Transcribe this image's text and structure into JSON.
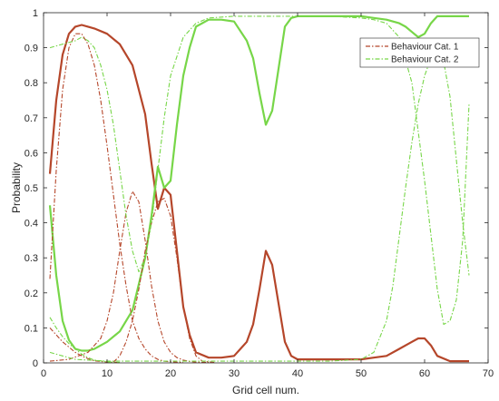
{
  "chart_data": {
    "type": "line",
    "xlabel": "Grid cell num.",
    "ylabel": "Probability",
    "xlim": [
      0,
      70
    ],
    "ylim": [
      0,
      1
    ],
    "xticks": [
      0,
      10,
      20,
      30,
      40,
      50,
      60,
      70
    ],
    "yticks": [
      0,
      0.1,
      0.2,
      0.3,
      0.4,
      0.5,
      0.6,
      0.7,
      0.8,
      0.9,
      1
    ],
    "grid": false,
    "legend_position": "top-right",
    "legend": [
      {
        "label": "Behaviour Cat. 1",
        "color": "#b5462a",
        "style": "dash-dot"
      },
      {
        "label": "Behaviour Cat. 2",
        "color": "#77d648",
        "style": "dash-dot"
      }
    ],
    "series": [
      {
        "color": "#b5462a",
        "style": "solid",
        "width": 2.2,
        "x": [
          1,
          2,
          3,
          4,
          5,
          6,
          7,
          8,
          10,
          12,
          14,
          16,
          17,
          18,
          19,
          20,
          21,
          22,
          23,
          24,
          26,
          28,
          30,
          32,
          33,
          34,
          35,
          36,
          37,
          38,
          39,
          40,
          45,
          50,
          52,
          54,
          56,
          58,
          59,
          60,
          61,
          62,
          64,
          67
        ],
        "y": [
          0.54,
          0.75,
          0.88,
          0.94,
          0.96,
          0.965,
          0.96,
          0.955,
          0.94,
          0.91,
          0.85,
          0.71,
          0.57,
          0.44,
          0.5,
          0.48,
          0.32,
          0.16,
          0.08,
          0.03,
          0.015,
          0.015,
          0.02,
          0.06,
          0.11,
          0.21,
          0.32,
          0.28,
          0.17,
          0.06,
          0.02,
          0.01,
          0.01,
          0.01,
          0.015,
          0.02,
          0.04,
          0.06,
          0.07,
          0.07,
          0.05,
          0.02,
          0.005,
          0.005
        ]
      },
      {
        "color": "#77d648",
        "style": "solid",
        "width": 2.2,
        "x": [
          1,
          2,
          3,
          4,
          5,
          6,
          7,
          8,
          10,
          12,
          14,
          16,
          17,
          18,
          19,
          20,
          21,
          22,
          23,
          24,
          26,
          28,
          30,
          32,
          33,
          34,
          35,
          36,
          37,
          38,
          39,
          40,
          45,
          50,
          52,
          54,
          56,
          57,
          58,
          59,
          60,
          61,
          62,
          64,
          67
        ],
        "y": [
          0.45,
          0.25,
          0.12,
          0.065,
          0.04,
          0.035,
          0.035,
          0.04,
          0.06,
          0.09,
          0.15,
          0.3,
          0.42,
          0.56,
          0.5,
          0.52,
          0.68,
          0.82,
          0.9,
          0.96,
          0.98,
          0.98,
          0.975,
          0.92,
          0.87,
          0.77,
          0.68,
          0.72,
          0.84,
          0.96,
          0.985,
          0.99,
          0.99,
          0.99,
          0.985,
          0.98,
          0.97,
          0.96,
          0.945,
          0.93,
          0.94,
          0.97,
          0.99,
          0.99,
          0.99
        ]
      },
      {
        "color": "#b5462a",
        "style": "dash-dot",
        "width": 1.1,
        "x": [
          1,
          2,
          3,
          4,
          5,
          6,
          7,
          8,
          9,
          10,
          11,
          12,
          13,
          14,
          15,
          16,
          17,
          18,
          19,
          20,
          21,
          22
        ],
        "y": [
          0.24,
          0.55,
          0.78,
          0.9,
          0.94,
          0.94,
          0.91,
          0.85,
          0.75,
          0.62,
          0.48,
          0.34,
          0.22,
          0.12,
          0.07,
          0.04,
          0.02,
          0.01,
          0.005,
          0.003,
          0.002,
          0.001
        ]
      },
      {
        "color": "#b5462a",
        "style": "dash-dot",
        "width": 1.1,
        "x": [
          1,
          4,
          7,
          9,
          10,
          11,
          12,
          13,
          14,
          15,
          16,
          17,
          18,
          19,
          20,
          21,
          22,
          23,
          24,
          26
        ],
        "y": [
          0.005,
          0.01,
          0.03,
          0.07,
          0.12,
          0.2,
          0.32,
          0.43,
          0.49,
          0.46,
          0.35,
          0.22,
          0.12,
          0.06,
          0.03,
          0.015,
          0.008,
          0.004,
          0.002,
          0.001
        ]
      },
      {
        "color": "#b5462a",
        "style": "dash-dot",
        "width": 1.1,
        "x": [
          11,
          12,
          13,
          14,
          15,
          16,
          17,
          18,
          19,
          20,
          21,
          22,
          23,
          24,
          25,
          27
        ],
        "y": [
          0.002,
          0.02,
          0.06,
          0.12,
          0.21,
          0.32,
          0.4,
          0.46,
          0.47,
          0.42,
          0.3,
          0.16,
          0.07,
          0.02,
          0.005,
          0.001
        ]
      },
      {
        "color": "#b5462a",
        "style": "dash-dot",
        "width": 1.1,
        "x": [
          1,
          2,
          3,
          4,
          5,
          6,
          7,
          8,
          10,
          12
        ],
        "y": [
          0.1,
          0.08,
          0.06,
          0.045,
          0.03,
          0.02,
          0.012,
          0.006,
          0.002,
          0.001
        ]
      },
      {
        "color": "#77d648",
        "style": "dash-dot",
        "width": 1.1,
        "x": [
          1,
          3,
          5,
          6,
          7,
          8,
          9,
          10,
          11,
          12,
          13,
          14,
          15,
          16,
          17,
          18,
          19,
          20,
          22,
          24,
          26,
          30,
          35,
          40,
          45,
          50,
          52,
          54,
          56,
          58,
          60,
          62,
          63,
          64,
          65,
          66,
          67
        ],
        "y": [
          0.9,
          0.91,
          0.92,
          0.93,
          0.92,
          0.9,
          0.85,
          0.78,
          0.68,
          0.55,
          0.42,
          0.32,
          0.26,
          0.3,
          0.4,
          0.55,
          0.7,
          0.82,
          0.93,
          0.97,
          0.985,
          0.99,
          0.99,
          0.99,
          0.99,
          0.985,
          0.98,
          0.97,
          0.93,
          0.8,
          0.52,
          0.21,
          0.11,
          0.12,
          0.18,
          0.35,
          0.74
        ]
      },
      {
        "color": "#77d648",
        "style": "dash-dot",
        "width": 1.1,
        "x": [
          1,
          3,
          5,
          10,
          20,
          30,
          40,
          45,
          50,
          52,
          54,
          55,
          56,
          57,
          58,
          59,
          60,
          61,
          62,
          63,
          64,
          65,
          66,
          67
        ],
        "y": [
          0.03,
          0.02,
          0.01,
          0.005,
          0.005,
          0.005,
          0.005,
          0.005,
          0.01,
          0.03,
          0.12,
          0.22,
          0.36,
          0.5,
          0.63,
          0.74,
          0.82,
          0.87,
          0.88,
          0.86,
          0.76,
          0.58,
          0.4,
          0.25
        ]
      },
      {
        "color": "#77d648",
        "style": "dash-dot",
        "width": 1.1,
        "x": [
          1,
          2,
          3,
          4,
          5,
          6,
          7,
          8,
          10,
          12
        ],
        "y": [
          0.13,
          0.1,
          0.075,
          0.055,
          0.04,
          0.025,
          0.015,
          0.008,
          0.003,
          0.001
        ]
      }
    ]
  }
}
